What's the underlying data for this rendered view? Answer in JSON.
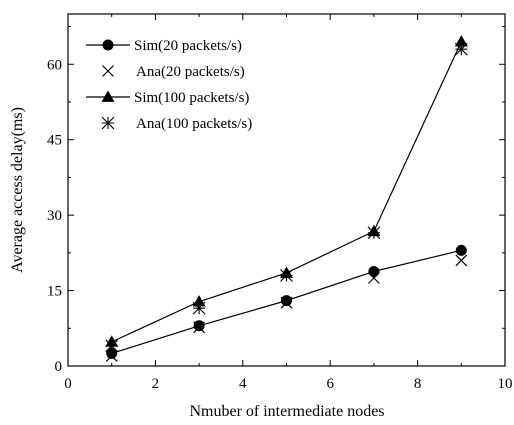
{
  "chart_data": {
    "type": "line",
    "title": "",
    "xlabel": "Nmuber of intermediate nodes",
    "ylabel": "Average access delay(ms)",
    "xlim": [
      0,
      10
    ],
    "ylim": [
      0,
      70
    ],
    "xticks": [
      0,
      2,
      4,
      6,
      8,
      10
    ],
    "yticks": [
      0,
      15,
      30,
      45,
      60
    ],
    "grid": false,
    "legend_position": "top-left",
    "series": [
      {
        "name": "Sim(20 packets/s)",
        "marker": "circle",
        "line": true,
        "x": [
          1,
          3,
          5,
          7,
          9
        ],
        "values": [
          2.5,
          8.0,
          13.0,
          18.8,
          23.0
        ]
      },
      {
        "name": "Ana(20 packets/s)",
        "marker": "x",
        "line": false,
        "x": [
          1,
          3,
          5,
          7,
          9
        ],
        "values": [
          2.0,
          7.7,
          12.6,
          17.5,
          21.0
        ]
      },
      {
        "name": "Sim(100 packets/s)",
        "marker": "triangle",
        "line": true,
        "x": [
          1,
          3,
          5,
          7,
          9
        ],
        "values": [
          4.8,
          12.8,
          18.5,
          26.8,
          64.5
        ]
      },
      {
        "name": "Ana(100 packets/s)",
        "marker": "asterisk",
        "line": false,
        "x": [
          1,
          3,
          5,
          7,
          9
        ],
        "values": [
          4.0,
          11.5,
          18.0,
          26.5,
          63.0
        ]
      }
    ]
  }
}
